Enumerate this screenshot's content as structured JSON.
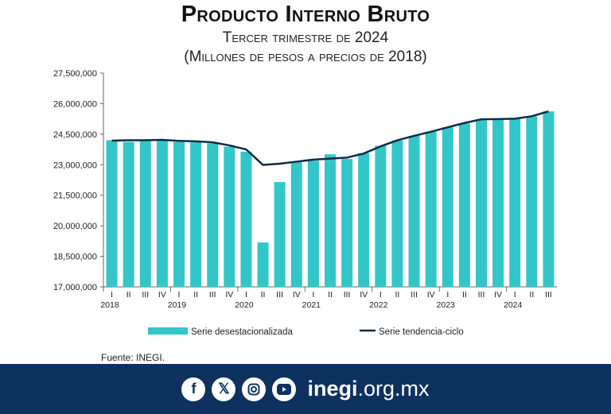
{
  "header": {
    "title": "Producto Interno Bruto",
    "subtitle": "Tercer trimestre de 2024",
    "units": "(Millones de pesos a precios de 2018)"
  },
  "chart_data": {
    "type": "bar",
    "title": "Producto Interno Bruto",
    "subtitle": "Tercer trimestre de 2024 (Millones de pesos a precios de 2018)",
    "ylim": [
      17000000,
      27500000
    ],
    "yticks": [
      17000000,
      18500000,
      20000000,
      21500000,
      23000000,
      24500000,
      26000000,
      27500000
    ],
    "ytick_labels": [
      "17,000,000",
      "18,500,000",
      "20,000,000",
      "21,500,000",
      "23,000,000",
      "24,500,000",
      "26,000,000",
      "27,500,000"
    ],
    "categories": [
      "I",
      "II",
      "III",
      "IV",
      "I",
      "II",
      "III",
      "IV",
      "I",
      "II",
      "III",
      "IV",
      "I",
      "II",
      "III",
      "IV",
      "I",
      "II",
      "III",
      "IV",
      "I",
      "II",
      "III",
      "IV",
      "I",
      "II",
      "III"
    ],
    "years": [
      "2018",
      "2019",
      "2020",
      "2021",
      "2022",
      "2023",
      "2024"
    ],
    "series": [
      {
        "name": "Serie desestacionalizada",
        "type": "bar",
        "color": "#33c6c8",
        "values": [
          24200000,
          24120000,
          24160000,
          24180000,
          24120000,
          24100000,
          24050000,
          23890000,
          23640000,
          19180000,
          22150000,
          23120000,
          23200000,
          23510000,
          23280000,
          23570000,
          23930000,
          24190000,
          24420000,
          24620000,
          24840000,
          25030000,
          25230000,
          25230000,
          25260000,
          25380000,
          25620000
        ]
      },
      {
        "name": "Serie tendencia-ciclo",
        "type": "line",
        "color": "#0e2a4a",
        "values": [
          24180000,
          24200000,
          24200000,
          24220000,
          24170000,
          24150000,
          24100000,
          23950000,
          23750000,
          22990000,
          23050000,
          23150000,
          23250000,
          23300000,
          23350000,
          23550000,
          23900000,
          24200000,
          24420000,
          24620000,
          24840000,
          25050000,
          25230000,
          25240000,
          25260000,
          25380000,
          25620000
        ]
      }
    ],
    "legend": "bottom",
    "grid": false
  },
  "source": "Fuente: INEGI.",
  "footer": {
    "social": [
      "facebook",
      "x",
      "instagram",
      "youtube"
    ],
    "site_bold": "inegi",
    "site_rest": ".org.mx"
  }
}
